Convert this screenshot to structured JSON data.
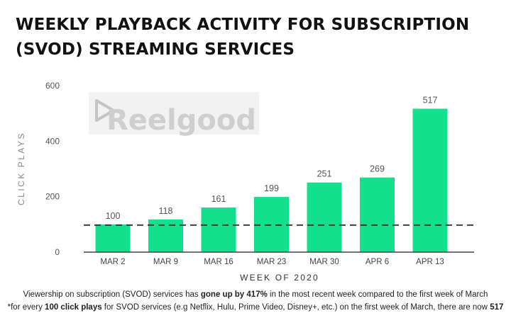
{
  "title_line1": "WEEKLY PLAYBACK ACTIVITY FOR SUBSCRIPTION",
  "title_line2": "(SVOD) STREAMING SERVICES",
  "watermark": "Reelgood",
  "colors": {
    "bar": "#13e08c",
    "baseline": "#444444",
    "reference_line": "#333333"
  },
  "chart_data": {
    "type": "bar",
    "categories": [
      "MAR 2",
      "MAR 9",
      "MAR 16",
      "MAR 23",
      "MAR 30",
      "APR 6",
      "APR 13"
    ],
    "values": [
      100,
      118,
      161,
      199,
      251,
      269,
      517
    ],
    "data_labels": [
      "100",
      "118",
      "161",
      "199",
      "251",
      "269",
      "517"
    ],
    "xlabel": "WEEK OF 2020",
    "ylabel": "CLICK PLAYS",
    "ylim": [
      0,
      600
    ],
    "yticks": [
      0,
      200,
      400,
      600
    ],
    "ytick_labels": [
      "0",
      "200",
      "400",
      "600"
    ],
    "reference_line": 100,
    "grid": false,
    "legend": "none"
  },
  "footnote": {
    "line1_a": "Viewership on subscription (SVOD) services has ",
    "line1_b": "gone up by 417%",
    "line1_c": " in the most recent week compared to the first week of March",
    "line2_a": "*for every ",
    "line2_b": "100 click plays",
    "line2_c": " for SVOD services (e.g Netflix, Hulu, Prime Video, Disney+, etc.) on the first week of March, there are now ",
    "line2_d": "517"
  }
}
